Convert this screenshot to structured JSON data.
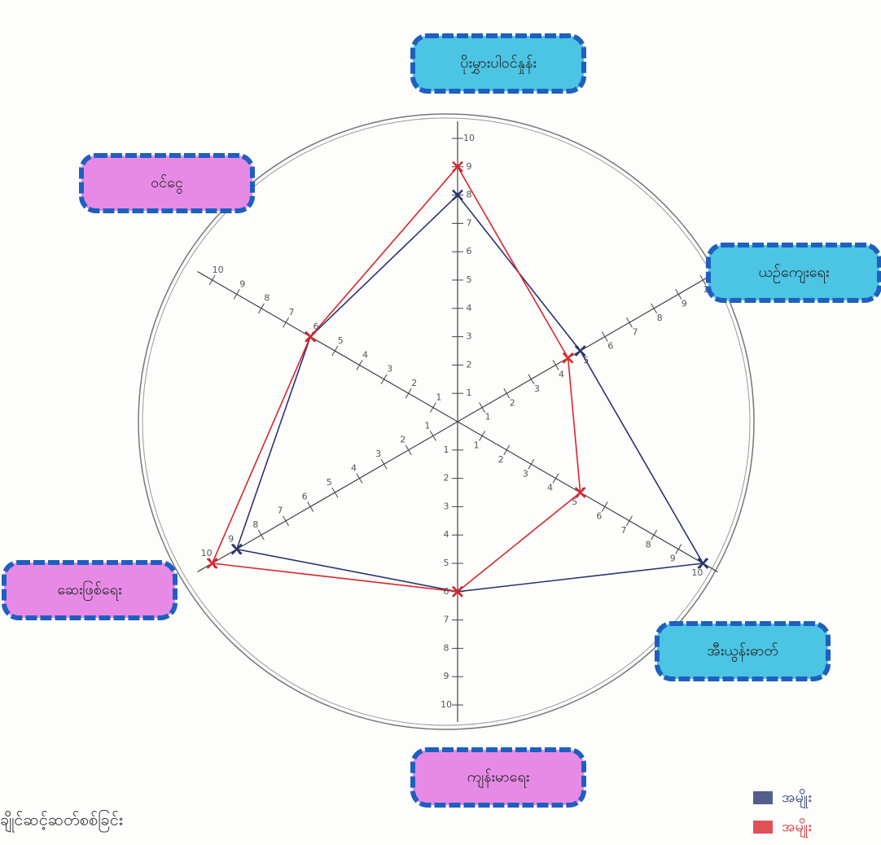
{
  "chart_data": {
    "type": "radar",
    "categories": [
      "ပိုးမွှားပါဝင်နှုန်း",
      "ယဉ်ကျေးရေး",
      "အီးယွန်းဓာတ်",
      "ကျန်းမာရေး",
      "ဆေးဖြစ်ရေး",
      "ဝင်ငွေ"
    ],
    "category_colors": [
      "#4cc4e4",
      "#4cc4e4",
      "#4cc4e4",
      "#e68ae6",
      "#e68ae6",
      "#e68ae6"
    ],
    "series": [
      {
        "name": "အမျိုး",
        "color": "#2b3470",
        "values": [
          8,
          5,
          10,
          6,
          9,
          6
        ]
      },
      {
        "name": "အမျိုး",
        "color": "#d8262e",
        "values": [
          9,
          4.5,
          5,
          6,
          10,
          6
        ]
      }
    ],
    "rlim": [
      0,
      10
    ],
    "rticks": [
      1,
      2,
      3,
      4,
      5,
      6,
      7,
      8,
      9,
      10
    ],
    "note": "ချိုင်ဆင့်ဆတ်စစ်ခြင်း"
  }
}
